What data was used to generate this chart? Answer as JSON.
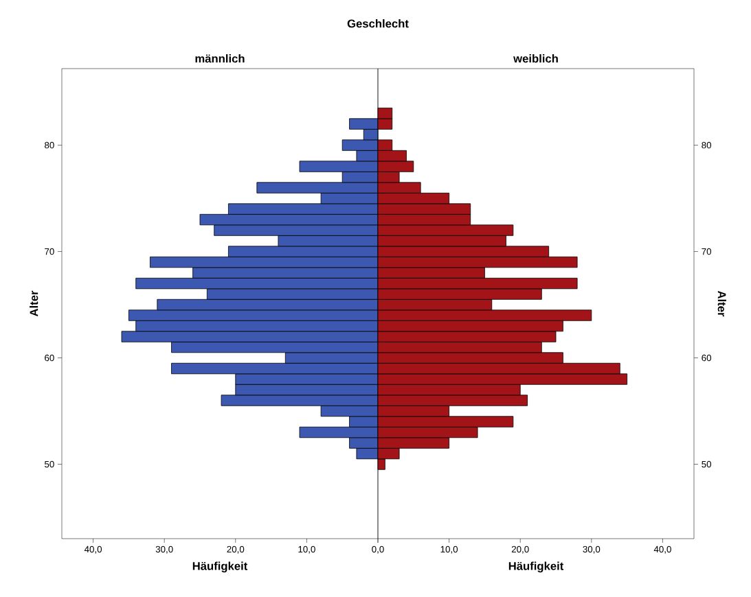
{
  "chart_data": [
    {
      "type": "bar",
      "orientation": "horizontal",
      "title": "männlich",
      "annotations": [
        "Geschlecht"
      ],
      "xlabel": "Häufigkeit",
      "ylabel": "Alter",
      "x": [
        51,
        52,
        53,
        54,
        55,
        56,
        57,
        58,
        59,
        60,
        61,
        62,
        63,
        64,
        65,
        66,
        67,
        68,
        69,
        70,
        71,
        72,
        73,
        74,
        75,
        76,
        77,
        78,
        79,
        80,
        81,
        82
      ],
      "values": [
        3,
        4,
        11,
        4,
        8,
        22,
        20,
        20,
        29,
        13,
        29,
        36,
        34,
        35,
        31,
        24,
        34,
        26,
        32,
        21,
        14,
        23,
        25,
        21,
        8,
        17,
        5,
        11,
        3,
        5,
        2,
        4
      ],
      "color": "#3c58b0",
      "xlim": [
        44.4,
        0
      ],
      "xticks": [
        {
          "value": 0,
          "label": "0,0"
        },
        {
          "value": 10,
          "label": "10,0"
        },
        {
          "value": 20,
          "label": "20,0"
        },
        {
          "value": 30,
          "label": "30,0"
        },
        {
          "value": 40,
          "label": "40,0"
        }
      ],
      "ylim": [
        43,
        87.2
      ],
      "yticks": [
        50,
        60,
        70,
        80
      ]
    },
    {
      "type": "bar",
      "orientation": "horizontal",
      "title": "weiblich",
      "xlabel": "Häufigkeit",
      "ylabel": "Alter",
      "x": [
        50,
        51,
        52,
        53,
        54,
        55,
        56,
        57,
        58,
        59,
        60,
        61,
        62,
        63,
        64,
        65,
        66,
        67,
        68,
        69,
        70,
        71,
        72,
        73,
        74,
        75,
        76,
        77,
        78,
        79,
        80,
        81,
        82,
        83
      ],
      "values": [
        1,
        3,
        10,
        14,
        19,
        10,
        21,
        20,
        35,
        34,
        26,
        23,
        25,
        26,
        30,
        16,
        23,
        28,
        15,
        28,
        24,
        18,
        19,
        13,
        13,
        10,
        6,
        3,
        5,
        4,
        2,
        null,
        2,
        2
      ],
      "color": "#a31419",
      "xlim": [
        0,
        44.4
      ],
      "xticks": [
        {
          "value": 0,
          "label": null
        },
        {
          "value": 10,
          "label": "10,0"
        },
        {
          "value": 20,
          "label": "20,0"
        },
        {
          "value": 30,
          "label": "30,0"
        },
        {
          "value": 40,
          "label": "40,0"
        }
      ],
      "ylim": [
        43,
        87.2
      ],
      "yticks": [
        50,
        60,
        70,
        80
      ]
    }
  ]
}
